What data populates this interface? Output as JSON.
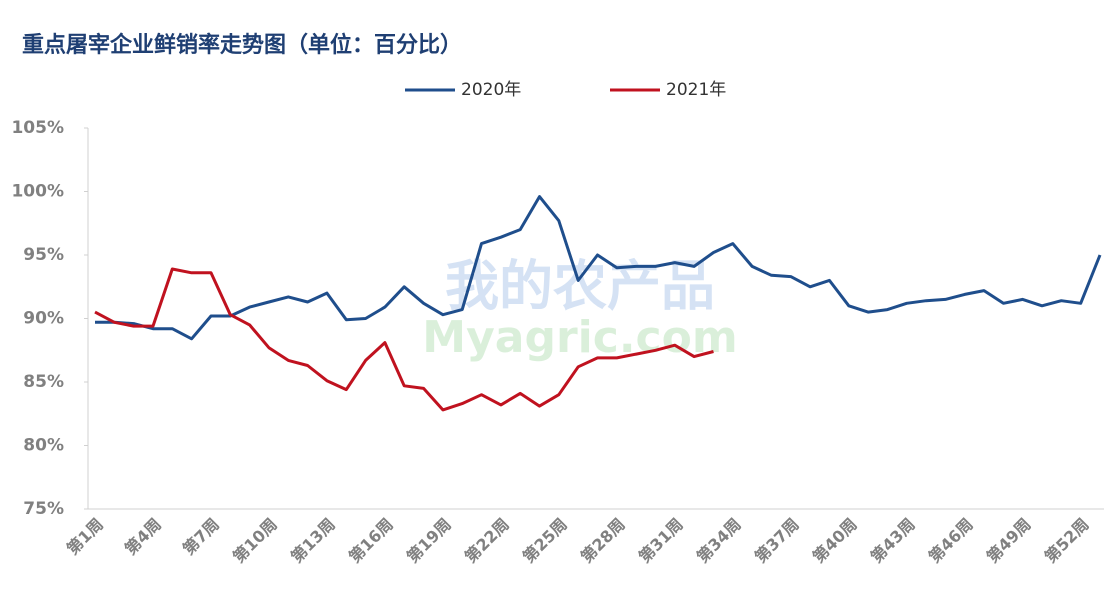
{
  "chart_data": {
    "type": "line",
    "title": "重点屠宰企业鲜销率走势图（单位：百分比）",
    "watermark": [
      "我的农产品",
      "Myagric.com"
    ],
    "categories": [
      "第1周",
      null,
      null,
      "第4周",
      null,
      null,
      "第7周",
      null,
      null,
      "第10周",
      null,
      null,
      "第13周",
      null,
      null,
      "第16周",
      null,
      null,
      "第19周",
      null,
      null,
      "第22周",
      null,
      null,
      "第25周",
      null,
      null,
      "第28周",
      null,
      null,
      "第31周",
      null,
      null,
      "第34周",
      null,
      null,
      "第37周",
      null,
      null,
      "第40周",
      null,
      null,
      "第43周",
      null,
      null,
      "第46周",
      null,
      null,
      "第49周",
      null,
      null,
      "第52周",
      null
    ],
    "series": [
      {
        "name": "2020年",
        "color": "#1f4e8c",
        "values": [
          89.7,
          89.7,
          89.6,
          89.2,
          89.2,
          88.4,
          90.2,
          90.2,
          90.9,
          91.3,
          91.7,
          91.3,
          92.0,
          89.9,
          90.0,
          90.9,
          92.5,
          91.2,
          90.3,
          90.7,
          95.9,
          96.4,
          97.0,
          99.6,
          97.7,
          93.0,
          95.0,
          94.0,
          94.1,
          94.1,
          94.4,
          94.1,
          95.2,
          95.9,
          94.1,
          93.4,
          93.3,
          92.5,
          93.0,
          91.0,
          90.5,
          90.7,
          91.2,
          91.4,
          91.5,
          91.9,
          92.2,
          91.2,
          91.5,
          91.0,
          91.4,
          91.2,
          95.0
        ]
      },
      {
        "name": "2021年",
        "color": "#c0121f",
        "values": [
          90.5,
          89.7,
          89.4,
          89.4,
          93.9,
          93.6,
          93.6,
          90.3,
          89.5,
          87.7,
          86.7,
          86.3,
          85.1,
          84.4,
          86.7,
          88.1,
          84.7,
          84.5,
          82.8,
          83.3,
          84.0,
          83.2,
          84.1,
          83.1,
          84.0,
          86.2,
          86.9,
          86.9,
          87.2,
          87.5,
          87.9,
          87.0,
          87.4,
          null,
          null,
          null,
          null,
          null,
          null,
          null,
          null,
          null,
          null,
          null,
          null,
          null,
          null,
          null,
          null,
          null,
          null,
          null,
          null
        ]
      }
    ],
    "ylim": [
      75,
      105
    ],
    "yticks": [
      {
        "value": 75,
        "label": "75%"
      },
      {
        "value": 80,
        "label": "80%"
      },
      {
        "value": 85,
        "label": "85%"
      },
      {
        "value": 90,
        "label": "90%"
      },
      {
        "value": 95,
        "label": "95%"
      },
      {
        "value": 100,
        "label": "100%"
      },
      {
        "value": 105,
        "label": "105%"
      }
    ],
    "grid": false,
    "legend": "top"
  }
}
